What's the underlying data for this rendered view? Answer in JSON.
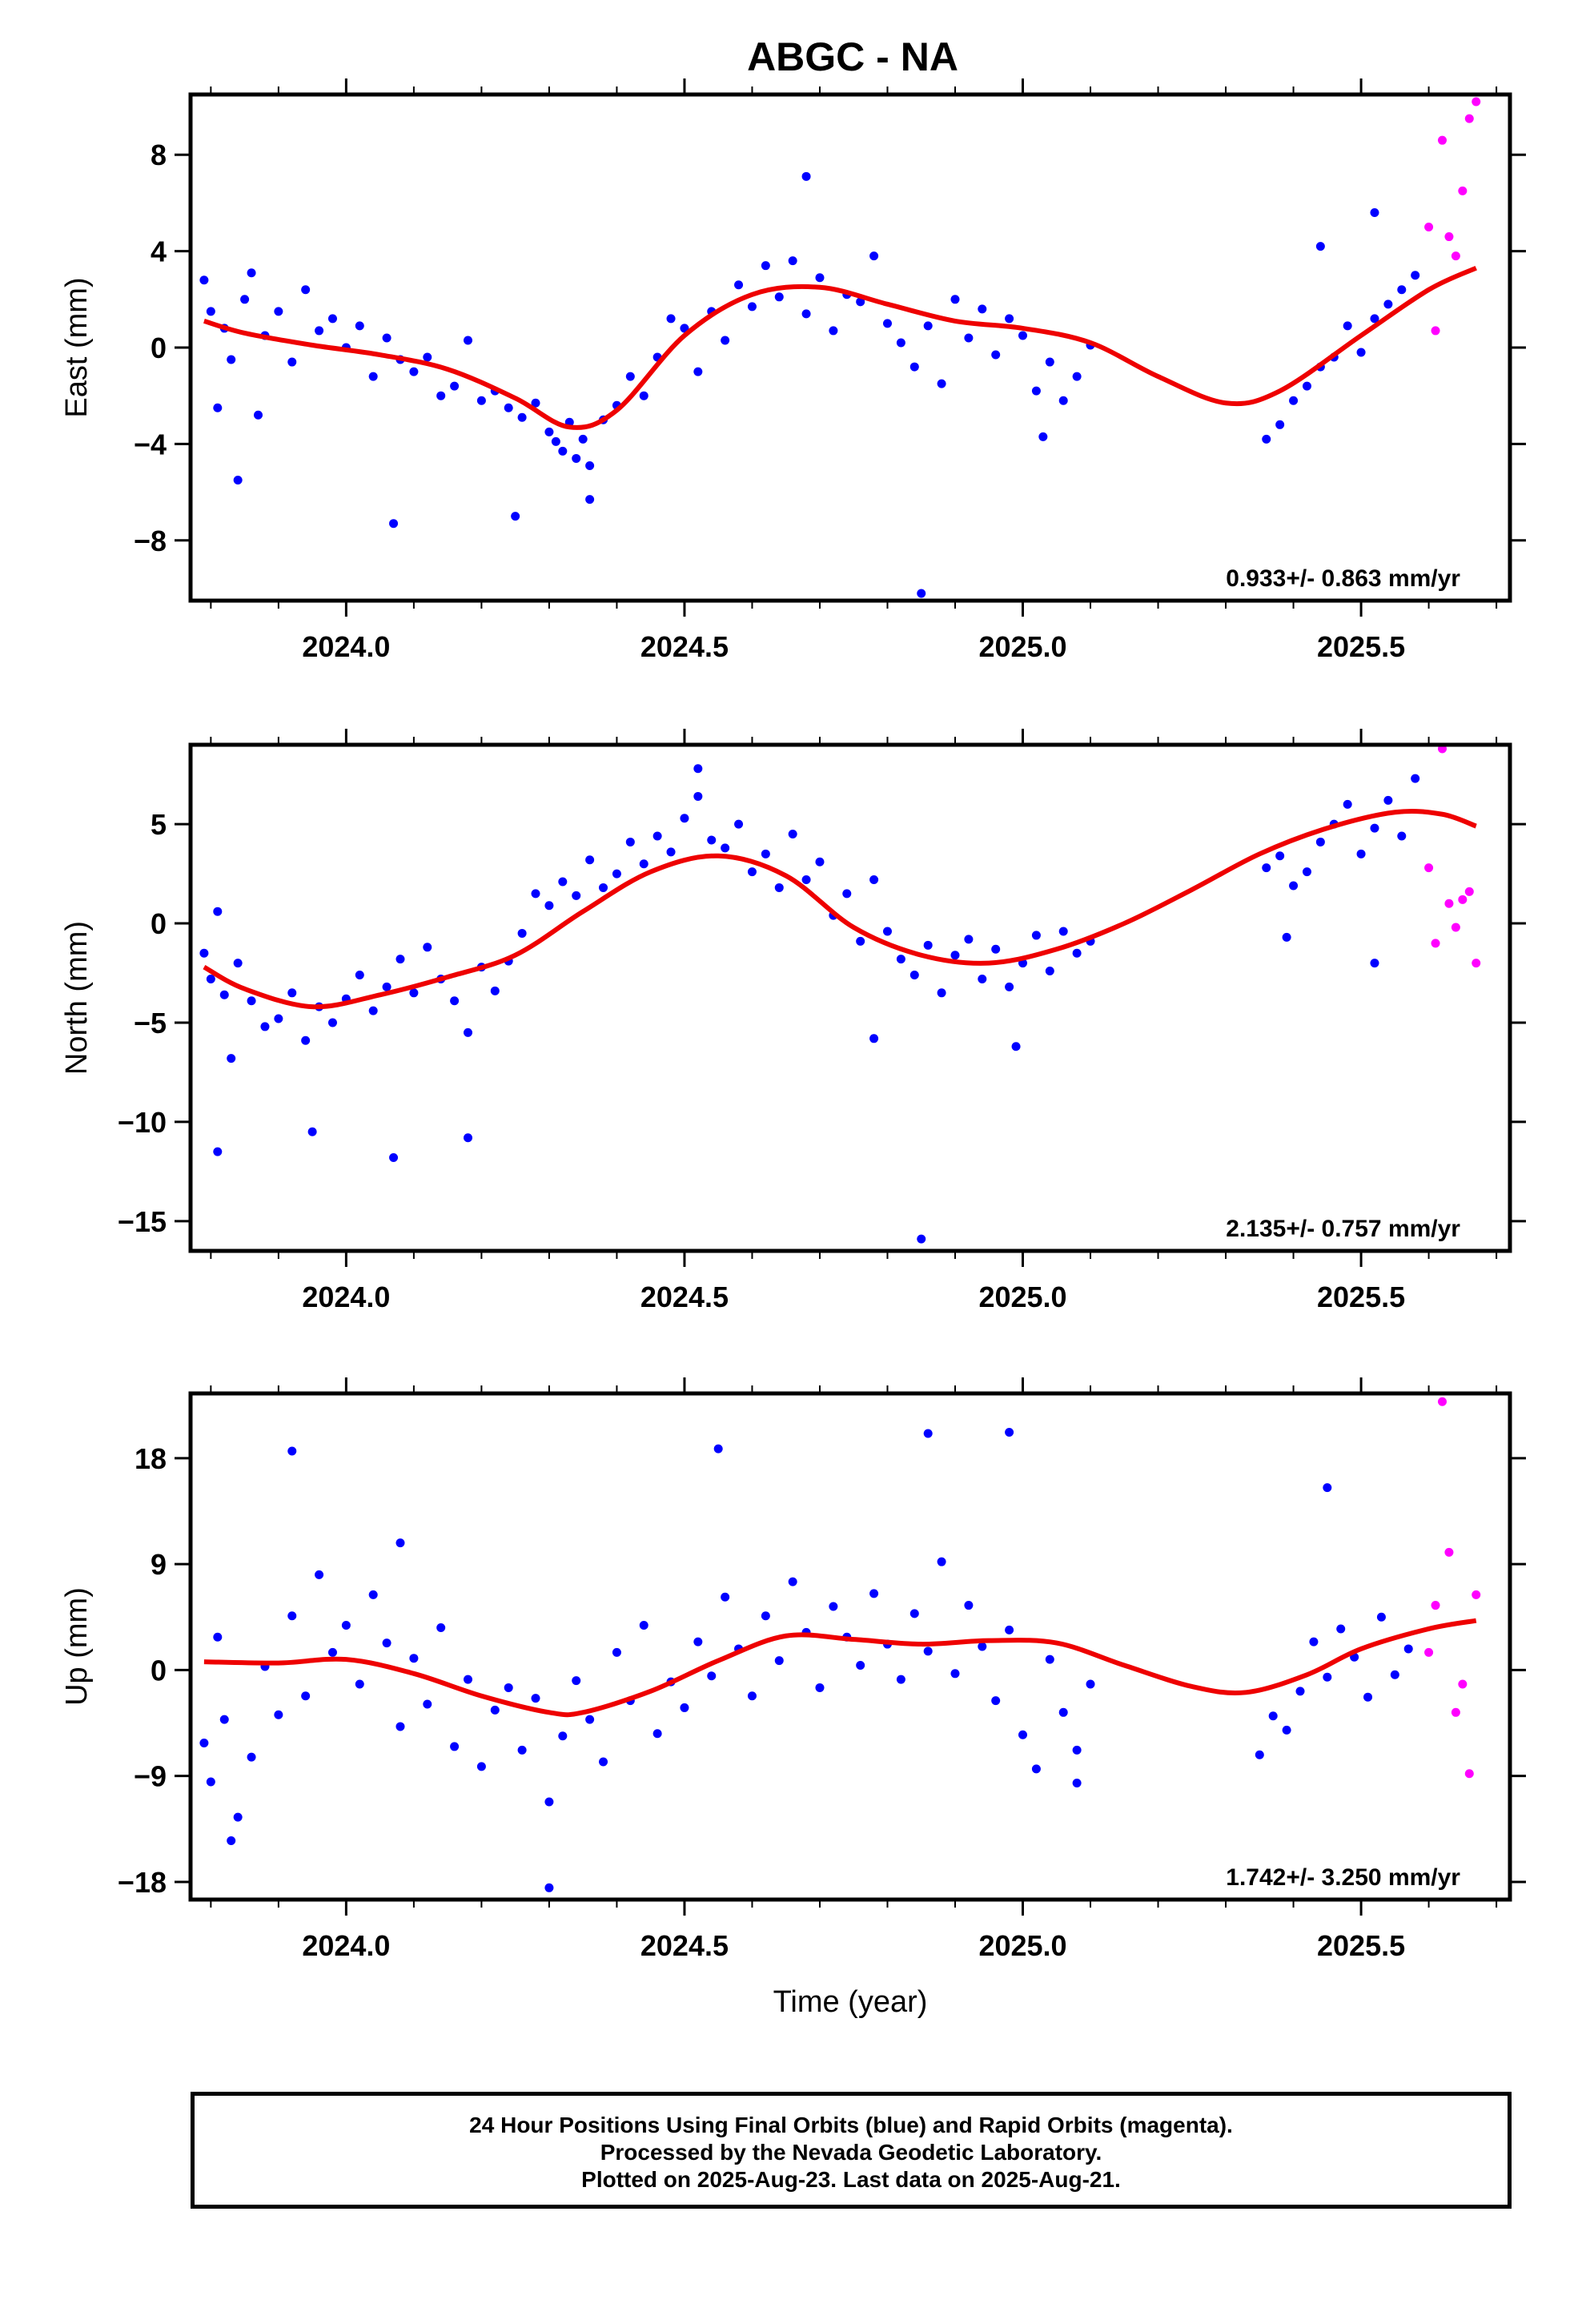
{
  "title": "ABGC - NA",
  "colors": {
    "final": "#0000ff",
    "rapid": "#ff00ff",
    "fit": "#ee0000"
  },
  "footer": {
    "line1": "24 Hour Positions Using Final Orbits (blue) and Rapid Orbits (magenta).",
    "line2": "Processed by the Nevada Geodetic Laboratory.",
    "line3": "Plotted on 2025-Aug-23. Last data on 2025-Aug-21."
  },
  "chart_data": [
    {
      "type": "scatter",
      "ylabel": "East (mm)",
      "xlabel": "",
      "xlim": [
        2023.77,
        2025.72
      ],
      "ylim": [
        -10.5,
        10.5
      ],
      "xticks": [
        2024.0,
        2024.5,
        2025.0,
        2025.5
      ],
      "xtick_labels": [
        "2024.0",
        "2024.5",
        "2025.0",
        "2025.5"
      ],
      "yticks": [
        -8,
        -4,
        0,
        4,
        8
      ],
      "ytick_labels": [
        "−8",
        "−4",
        "0",
        "4",
        "8"
      ],
      "rate": "0.933+/- 0.863 mm/yr",
      "fit_curve": {
        "name": "",
        "x": [
          2023.79,
          2023.85,
          2023.95,
          2024.05,
          2024.15,
          2024.25,
          2024.33,
          2024.4,
          2024.5,
          2024.6,
          2024.7,
          2024.8,
          2024.9,
          2025.0,
          2025.1,
          2025.2,
          2025.3,
          2025.38,
          2025.5,
          2025.6,
          2025.67
        ],
        "y": [
          1.1,
          0.6,
          0.1,
          -0.3,
          -0.9,
          -2.1,
          -3.3,
          -2.6,
          0.5,
          2.2,
          2.5,
          1.8,
          1.1,
          0.8,
          0.2,
          -1.2,
          -2.3,
          -1.8,
          0.5,
          2.4,
          3.3
        ]
      },
      "series": [
        {
          "name": "Final Orbits",
          "x": [
            2023.79,
            2023.8,
            2023.81,
            2023.82,
            2023.83,
            2023.85,
            2023.86,
            2023.88,
            2023.9,
            2023.92,
            2023.94,
            2023.96,
            2023.98,
            2024.0,
            2024.02,
            2024.04,
            2024.06,
            2024.08,
            2024.1,
            2024.12,
            2024.14,
            2024.16,
            2024.18,
            2024.2,
            2024.22,
            2024.24,
            2024.26,
            2024.28,
            2024.3,
            2024.31,
            2024.32,
            2024.33,
            2024.34,
            2024.35,
            2024.36,
            2024.38,
            2024.4,
            2024.42,
            2024.44,
            2024.46,
            2024.48,
            2024.5,
            2024.52,
            2024.54,
            2024.56,
            2024.58,
            2024.6,
            2024.62,
            2024.64,
            2024.66,
            2024.68,
            2024.7,
            2024.72,
            2024.74,
            2024.76,
            2024.78,
            2024.8,
            2024.82,
            2024.84,
            2024.86,
            2024.88,
            2024.9,
            2024.92,
            2024.94,
            2024.96,
            2024.98,
            2025.0,
            2025.02,
            2025.04,
            2025.06,
            2025.08,
            2025.1,
            2025.36,
            2025.38,
            2025.4,
            2025.42,
            2025.44,
            2025.46,
            2025.48,
            2025.5,
            2025.52,
            2025.54,
            2025.56,
            2025.58,
            2023.84,
            2023.87,
            2024.07,
            2024.25,
            2024.36,
            2024.85,
            2024.68,
            2025.03,
            2025.44,
            2025.52
          ],
          "y": [
            2.8,
            1.5,
            -2.5,
            0.8,
            -0.5,
            2.0,
            3.1,
            0.5,
            1.5,
            -0.6,
            2.4,
            0.7,
            1.2,
            0.0,
            0.9,
            -1.2,
            0.4,
            -0.5,
            -1.0,
            -0.4,
            -2.0,
            -1.6,
            0.3,
            -2.2,
            -1.8,
            -2.5,
            -2.9,
            -2.3,
            -3.5,
            -3.9,
            -4.3,
            -3.1,
            -4.6,
            -3.8,
            -4.9,
            -3.0,
            -2.4,
            -1.2,
            -2.0,
            -0.4,
            1.2,
            0.8,
            -1.0,
            1.5,
            0.3,
            2.6,
            1.7,
            3.4,
            2.1,
            3.6,
            1.4,
            2.9,
            0.7,
            2.2,
            1.9,
            3.8,
            1.0,
            0.2,
            -0.8,
            0.9,
            -1.5,
            2.0,
            0.4,
            1.6,
            -0.3,
            1.2,
            0.5,
            -1.8,
            -0.6,
            -2.2,
            -1.2,
            0.1,
            -3.8,
            -3.2,
            -2.2,
            -1.6,
            -0.8,
            -0.4,
            0.9,
            -0.2,
            1.2,
            1.8,
            2.4,
            3.0,
            -5.5,
            -2.8,
            -7.3,
            -7.0,
            -6.3,
            -10.2,
            7.1,
            -3.7,
            4.2,
            5.6
          ]
        },
        {
          "name": "Rapid Orbits",
          "x": [
            2025.6,
            2025.61,
            2025.62,
            2025.63,
            2025.64,
            2025.65,
            2025.66,
            2025.67
          ],
          "y": [
            5.0,
            0.7,
            8.6,
            4.6,
            3.8,
            6.5,
            9.5,
            10.2
          ]
        }
      ]
    },
    {
      "type": "scatter",
      "ylabel": "North (mm)",
      "xlabel": "",
      "xlim": [
        2023.77,
        2025.72
      ],
      "ylim": [
        -16.5,
        9.0
      ],
      "xticks": [
        2024.0,
        2024.5,
        2025.0,
        2025.5
      ],
      "xtick_labels": [
        "2024.0",
        "2024.5",
        "2025.0",
        "2025.5"
      ],
      "yticks": [
        -15,
        -10,
        -5,
        0,
        5
      ],
      "ytick_labels": [
        "−15",
        "−10",
        "−5",
        "0",
        "5"
      ],
      "rate": "2.135+/- 0.757 mm/yr",
      "fit_curve": {
        "name": "",
        "x": [
          2023.79,
          2023.85,
          2023.95,
          2024.05,
          2024.15,
          2024.25,
          2024.35,
          2024.45,
          2024.55,
          2024.65,
          2024.75,
          2024.85,
          2024.95,
          2025.05,
          2025.15,
          2025.25,
          2025.35,
          2025.45,
          2025.55,
          2025.62,
          2025.67
        ],
        "y": [
          -2.2,
          -3.3,
          -4.2,
          -3.6,
          -2.7,
          -1.6,
          0.6,
          2.6,
          3.4,
          2.4,
          -0.2,
          -1.6,
          -2.0,
          -1.3,
          0.0,
          1.7,
          3.5,
          4.8,
          5.6,
          5.5,
          4.9
        ]
      },
      "series": [
        {
          "name": "Final Orbits",
          "x": [
            2023.79,
            2023.8,
            2023.81,
            2023.82,
            2023.84,
            2023.86,
            2023.88,
            2023.9,
            2023.92,
            2023.94,
            2023.96,
            2023.98,
            2024.0,
            2024.02,
            2024.04,
            2024.06,
            2024.08,
            2024.1,
            2024.12,
            2024.14,
            2024.16,
            2024.18,
            2024.2,
            2024.22,
            2024.24,
            2024.26,
            2024.28,
            2024.3,
            2024.32,
            2024.34,
            2024.36,
            2024.38,
            2024.4,
            2024.42,
            2024.44,
            2024.46,
            2024.48,
            2024.5,
            2024.52,
            2024.54,
            2024.56,
            2024.58,
            2024.6,
            2024.62,
            2024.64,
            2024.66,
            2024.68,
            2024.7,
            2024.72,
            2024.74,
            2024.76,
            2024.78,
            2024.8,
            2024.82,
            2024.84,
            2024.86,
            2024.88,
            2024.9,
            2024.92,
            2024.94,
            2024.96,
            2024.98,
            2025.0,
            2025.02,
            2025.04,
            2025.06,
            2025.08,
            2025.1,
            2025.36,
            2025.38,
            2025.4,
            2025.42,
            2025.44,
            2025.46,
            2025.48,
            2025.5,
            2025.52,
            2025.54,
            2025.56,
            2025.58,
            2023.81,
            2023.83,
            2023.95,
            2024.07,
            2024.18,
            2024.85,
            2024.52,
            2025.39,
            2025.52,
            2024.78,
            2024.99
          ],
          "y": [
            -1.5,
            -2.8,
            0.6,
            -3.6,
            -2.0,
            -3.9,
            -5.2,
            -4.8,
            -3.5,
            -5.9,
            -4.2,
            -5.0,
            -3.8,
            -2.6,
            -4.4,
            -3.2,
            -1.8,
            -3.5,
            -1.2,
            -2.8,
            -3.9,
            -5.5,
            -2.2,
            -3.4,
            -1.9,
            -0.5,
            1.5,
            0.9,
            2.1,
            1.4,
            3.2,
            1.8,
            2.5,
            4.1,
            3.0,
            4.4,
            3.6,
            5.3,
            6.4,
            4.2,
            3.8,
            5.0,
            2.6,
            3.5,
            1.8,
            4.5,
            2.2,
            3.1,
            0.4,
            1.5,
            -0.9,
            2.2,
            -0.4,
            -1.8,
            -2.6,
            -1.1,
            -3.5,
            -1.6,
            -0.8,
            -2.8,
            -1.3,
            -3.2,
            -2.0,
            -0.6,
            -2.4,
            -0.4,
            -1.5,
            -0.9,
            2.8,
            3.4,
            1.9,
            2.6,
            4.1,
            5.0,
            6.0,
            3.5,
            4.8,
            6.2,
            4.4,
            7.3,
            -11.5,
            -6.8,
            -10.5,
            -11.8,
            -10.8,
            -15.9,
            7.8,
            -0.7,
            -2.0,
            -5.8,
            -6.2
          ]
        },
        {
          "name": "Rapid Orbits",
          "x": [
            2025.6,
            2025.61,
            2025.62,
            2025.63,
            2025.64,
            2025.65,
            2025.66,
            2025.67
          ],
          "y": [
            2.8,
            -1.0,
            8.8,
            1.0,
            -0.2,
            1.2,
            1.6,
            -2.0
          ]
        }
      ]
    },
    {
      "type": "scatter",
      "ylabel": "Up (mm)",
      "xlabel": "Time (year)",
      "xlim": [
        2023.77,
        2025.72
      ],
      "ylim": [
        -19.5,
        23.5
      ],
      "xticks": [
        2024.0,
        2024.5,
        2025.0,
        2025.5
      ],
      "xtick_labels": [
        "2024.0",
        "2024.5",
        "2025.0",
        "2025.5"
      ],
      "yticks": [
        -18,
        -9,
        0,
        9,
        18
      ],
      "ytick_labels": [
        "−18",
        "−9",
        "0",
        "9",
        "18"
      ],
      "rate": "1.742+/- 3.250 mm/yr",
      "fit_curve": {
        "name": "",
        "x": [
          2023.79,
          2023.9,
          2024.0,
          2024.1,
          2024.2,
          2024.3,
          2024.35,
          2024.45,
          2024.55,
          2024.65,
          2024.75,
          2024.85,
          2024.95,
          2025.05,
          2025.15,
          2025.25,
          2025.33,
          2025.42,
          2025.5,
          2025.6,
          2025.67
        ],
        "y": [
          0.7,
          0.6,
          0.9,
          -0.3,
          -2.2,
          -3.6,
          -3.6,
          -1.8,
          0.8,
          2.9,
          2.6,
          2.2,
          2.5,
          2.3,
          0.4,
          -1.4,
          -1.9,
          -0.4,
          1.8,
          3.5,
          4.2
        ]
      },
      "series": [
        {
          "name": "Final Orbits",
          "x": [
            2023.79,
            2023.8,
            2023.81,
            2023.82,
            2023.84,
            2023.86,
            2023.88,
            2023.9,
            2023.92,
            2023.94,
            2023.96,
            2023.98,
            2024.0,
            2024.02,
            2024.04,
            2024.06,
            2024.08,
            2024.1,
            2024.12,
            2024.14,
            2024.16,
            2024.18,
            2024.2,
            2024.22,
            2024.24,
            2024.26,
            2024.28,
            2024.3,
            2024.32,
            2024.34,
            2024.36,
            2024.38,
            2024.4,
            2024.42,
            2024.44,
            2024.46,
            2024.48,
            2024.5,
            2024.52,
            2024.54,
            2024.56,
            2024.58,
            2024.6,
            2024.62,
            2024.64,
            2024.66,
            2024.68,
            2024.7,
            2024.72,
            2024.74,
            2024.76,
            2024.78,
            2024.8,
            2024.82,
            2024.84,
            2024.86,
            2024.88,
            2024.9,
            2024.92,
            2024.94,
            2024.96,
            2024.98,
            2025.0,
            2025.02,
            2025.04,
            2025.06,
            2025.08,
            2025.1,
            2025.35,
            2025.37,
            2025.39,
            2025.41,
            2025.43,
            2025.45,
            2025.47,
            2025.49,
            2025.51,
            2025.53,
            2025.55,
            2025.57,
            2023.92,
            2023.83,
            2024.3,
            2024.55,
            2024.86,
            2024.98,
            2025.08,
            2024.08,
            2025.45
          ],
          "y": [
            -6.2,
            -9.5,
            2.8,
            -4.2,
            -12.5,
            -7.4,
            0.3,
            -3.8,
            4.6,
            -2.2,
            8.1,
            1.5,
            3.8,
            -1.2,
            6.4,
            2.3,
            -4.8,
            1.0,
            -2.9,
            3.6,
            -6.5,
            -0.8,
            -8.2,
            -3.4,
            -1.5,
            -6.8,
            -2.4,
            -11.2,
            -5.6,
            -0.9,
            -4.2,
            -7.8,
            1.5,
            -2.6,
            3.8,
            -5.4,
            -1.0,
            -3.2,
            2.4,
            -0.5,
            6.2,
            1.8,
            -2.2,
            4.6,
            0.8,
            7.5,
            3.2,
            -1.5,
            5.4,
            2.8,
            0.4,
            6.5,
            2.2,
            -0.8,
            4.8,
            1.6,
            9.2,
            -0.3,
            5.5,
            2.0,
            -2.6,
            3.4,
            -5.5,
            -8.4,
            0.9,
            -3.6,
            -6.8,
            -1.2,
            -7.2,
            -3.9,
            -5.1,
            -1.8,
            2.4,
            -0.6,
            3.5,
            1.1,
            -2.3,
            4.5,
            -0.4,
            1.8,
            18.6,
            -14.5,
            -18.5,
            18.8,
            20.1,
            20.2,
            -9.6,
            10.8,
            15.5
          ]
        },
        {
          "name": "Rapid Orbits",
          "x": [
            2025.6,
            2025.61,
            2025.62,
            2025.63,
            2025.64,
            2025.65,
            2025.66,
            2025.67
          ],
          "y": [
            1.5,
            5.5,
            22.8,
            10.0,
            -3.6,
            -1.2,
            -8.8,
            6.4
          ]
        }
      ]
    }
  ]
}
